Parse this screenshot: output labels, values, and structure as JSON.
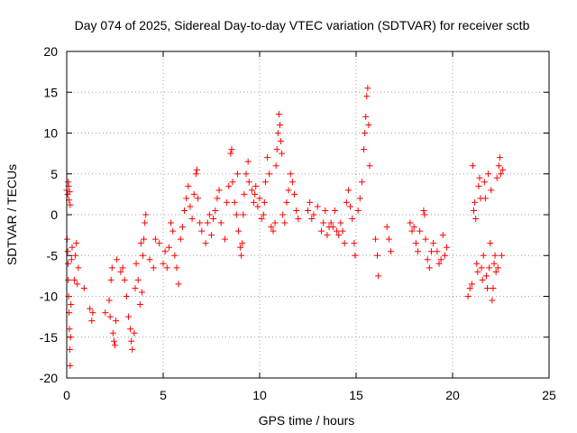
{
  "chart_data": {
    "type": "scatter",
    "title": "Day 074 of 2025, Sidereal Day-to-day VTEC variation (SDTVAR) for receiver sctb",
    "xlabel": "GPS time / hours",
    "ylabel": "SDTVAR / TECUs",
    "xlim": [
      0,
      25
    ],
    "ylim": [
      -20,
      20
    ],
    "xticks": [
      "0",
      "5",
      "10",
      "15",
      "20",
      "25"
    ],
    "yticks": [
      "20",
      "15",
      "10",
      "5",
      "0",
      "-5",
      "-10",
      "-15",
      "-20"
    ],
    "grid": true,
    "marker": "plus",
    "color": "#ff0000",
    "series": [
      {
        "name": "SDTVAR",
        "points": [
          [
            0.0,
            3.0
          ],
          [
            0.05,
            2.5
          ],
          [
            0.08,
            4.0
          ],
          [
            0.1,
            3.5
          ],
          [
            0.12,
            1.8
          ],
          [
            0.15,
            2.8
          ],
          [
            0.18,
            1.2
          ],
          [
            0.02,
            -3.0
          ],
          [
            0.05,
            -4.5
          ],
          [
            0.07,
            -6.0
          ],
          [
            0.08,
            -8.0
          ],
          [
            0.1,
            -10.0
          ],
          [
            0.12,
            -12.0
          ],
          [
            0.14,
            -14.0
          ],
          [
            0.16,
            -16.5
          ],
          [
            0.18,
            -18.5
          ],
          [
            0.2,
            -15.0
          ],
          [
            0.22,
            -11.0
          ],
          [
            0.25,
            -5.5
          ],
          [
            0.28,
            -4.0
          ],
          [
            0.4,
            -8.0
          ],
          [
            0.45,
            -5.0
          ],
          [
            0.5,
            -3.5
          ],
          [
            0.55,
            -8.5
          ],
          [
            0.6,
            -6.5
          ],
          [
            0.9,
            -9.0
          ],
          [
            1.2,
            -11.5
          ],
          [
            1.3,
            -13.0
          ],
          [
            1.35,
            -12.0
          ],
          [
            2.0,
            -12.0
          ],
          [
            2.2,
            -10.5
          ],
          [
            2.3,
            -8.0
          ],
          [
            2.35,
            -6.5
          ],
          [
            2.4,
            -14.5
          ],
          [
            2.45,
            -15.5
          ],
          [
            2.5,
            -16.0
          ],
          [
            2.55,
            -13.0
          ],
          [
            2.6,
            -5.5
          ],
          [
            2.25,
            -12.5
          ],
          [
            2.8,
            -7.0
          ],
          [
            2.9,
            -6.5
          ],
          [
            3.0,
            -8.0
          ],
          [
            3.1,
            -10.0
          ],
          [
            3.2,
            -12.5
          ],
          [
            3.3,
            -14.0
          ],
          [
            3.35,
            -15.5
          ],
          [
            3.4,
            -16.5
          ],
          [
            3.5,
            -14.5
          ],
          [
            3.55,
            -9.0
          ],
          [
            3.6,
            -6.0
          ],
          [
            3.7,
            -8.0
          ],
          [
            3.8,
            -11.0
          ],
          [
            3.9,
            -9.5
          ],
          [
            3.95,
            -5.0
          ],
          [
            4.0,
            -3.0
          ],
          [
            4.05,
            -1.0
          ],
          [
            4.1,
            0.0
          ],
          [
            3.85,
            -3.5
          ],
          [
            4.3,
            -5.5
          ],
          [
            4.5,
            -6.5
          ],
          [
            4.6,
            -3.0
          ],
          [
            4.8,
            -3.5
          ],
          [
            5.0,
            -6.0
          ],
          [
            5.1,
            -4.5
          ],
          [
            5.2,
            -6.5
          ],
          [
            5.3,
            -4.0
          ],
          [
            5.4,
            -1.0
          ],
          [
            5.5,
            -2.0
          ],
          [
            5.6,
            -5.0
          ],
          [
            5.7,
            -6.5
          ],
          [
            5.8,
            -8.5
          ],
          [
            5.9,
            -3.0
          ],
          [
            6.0,
            -1.5
          ],
          [
            6.1,
            0.5
          ],
          [
            6.2,
            2.0
          ],
          [
            6.3,
            3.5
          ],
          [
            6.4,
            1.0
          ],
          [
            6.5,
            -0.5
          ],
          [
            6.6,
            2.5
          ],
          [
            6.7,
            5.0
          ],
          [
            6.75,
            5.5
          ],
          [
            6.8,
            2.0
          ],
          [
            6.9,
            -1.0
          ],
          [
            7.0,
            -2.0
          ],
          [
            7.2,
            -3.5
          ],
          [
            7.3,
            -1.0
          ],
          [
            7.4,
            0.0
          ],
          [
            7.5,
            -2.5
          ],
          [
            7.6,
            -0.5
          ],
          [
            7.7,
            0.5
          ],
          [
            7.8,
            2.0
          ],
          [
            7.9,
            3.0
          ],
          [
            8.0,
            -1.0
          ],
          [
            8.2,
            -3.0
          ],
          [
            8.3,
            1.5
          ],
          [
            8.4,
            3.5
          ],
          [
            8.5,
            7.5
          ],
          [
            8.55,
            8.0
          ],
          [
            8.6,
            4.0
          ],
          [
            8.7,
            1.5
          ],
          [
            8.8,
            0.0
          ],
          [
            8.85,
            5.0
          ],
          [
            8.9,
            -2.0
          ],
          [
            9.0,
            -4.0
          ],
          [
            9.05,
            -5.0
          ],
          [
            9.1,
            -3.5
          ],
          [
            9.15,
            0.0
          ],
          [
            9.2,
            2.5
          ],
          [
            9.3,
            5.0
          ],
          [
            9.4,
            6.5
          ],
          [
            9.45,
            4.0
          ],
          [
            9.6,
            3.0
          ],
          [
            9.7,
            1.5
          ],
          [
            9.75,
            2.5
          ],
          [
            9.8,
            3.5
          ],
          [
            9.9,
            1.0
          ],
          [
            10.0,
            2.0
          ],
          [
            10.1,
            -0.5
          ],
          [
            10.2,
            0.0
          ],
          [
            10.25,
            1.5
          ],
          [
            10.3,
            4.0
          ],
          [
            10.4,
            7.0
          ],
          [
            10.5,
            5.0
          ],
          [
            10.6,
            -1.5
          ],
          [
            10.7,
            -2.0
          ],
          [
            10.8,
            -1.0
          ],
          [
            10.85,
            6.0
          ],
          [
            10.9,
            8.0
          ],
          [
            10.95,
            10.0
          ],
          [
            11.0,
            12.3
          ],
          [
            11.05,
            11.0
          ],
          [
            11.1,
            9.0
          ],
          [
            11.15,
            7.5
          ],
          [
            11.2,
            0.0
          ],
          [
            11.3,
            -1.0
          ],
          [
            11.4,
            1.5
          ],
          [
            11.5,
            3.0
          ],
          [
            11.6,
            5.0
          ],
          [
            11.7,
            4.0
          ],
          [
            11.8,
            2.5
          ],
          [
            11.9,
            0.5
          ],
          [
            12.0,
            -0.5
          ],
          [
            12.5,
            0.5
          ],
          [
            12.6,
            1.5
          ],
          [
            12.7,
            -0.5
          ],
          [
            12.8,
            0.0
          ],
          [
            13.0,
            1.0
          ],
          [
            13.2,
            -2.0
          ],
          [
            13.3,
            -1.0
          ],
          [
            13.4,
            0.5
          ],
          [
            13.5,
            -2.5
          ],
          [
            13.6,
            -1.5
          ],
          [
            13.7,
            -1.0
          ],
          [
            13.8,
            -1.5
          ],
          [
            13.9,
            0.5
          ],
          [
            14.0,
            -2.0
          ],
          [
            14.1,
            -2.5
          ],
          [
            14.2,
            -1.0
          ],
          [
            14.3,
            -2.0
          ],
          [
            14.4,
            -3.5
          ],
          [
            14.5,
            1.5
          ],
          [
            14.6,
            3.0
          ],
          [
            14.7,
            1.0
          ],
          [
            14.8,
            -0.5
          ],
          [
            14.9,
            -3.5
          ],
          [
            14.95,
            -5.0
          ],
          [
            15.1,
            0.5
          ],
          [
            15.2,
            2.0
          ],
          [
            15.3,
            4.0
          ],
          [
            15.4,
            8.0
          ],
          [
            15.45,
            10.0
          ],
          [
            15.5,
            12.0
          ],
          [
            15.55,
            14.5
          ],
          [
            15.6,
            15.5
          ],
          [
            15.65,
            11.0
          ],
          [
            15.7,
            6.0
          ],
          [
            16.0,
            -3.0
          ],
          [
            16.1,
            -5.0
          ],
          [
            16.15,
            -7.5
          ],
          [
            16.6,
            -1.5
          ],
          [
            16.7,
            -3.0
          ],
          [
            16.8,
            -4.5
          ],
          [
            17.8,
            -1.0
          ],
          [
            17.9,
            -2.0
          ],
          [
            18.0,
            -1.5
          ],
          [
            18.1,
            -3.5
          ],
          [
            18.2,
            -4.5
          ],
          [
            18.3,
            -2.0
          ],
          [
            18.5,
            0.5
          ],
          [
            18.55,
            0.0
          ],
          [
            18.6,
            -3.0
          ],
          [
            18.7,
            -5.5
          ],
          [
            18.8,
            -6.5
          ],
          [
            18.9,
            -4.5
          ],
          [
            19.0,
            -3.5
          ],
          [
            19.2,
            -4.5
          ],
          [
            19.3,
            -6.0
          ],
          [
            19.4,
            -5.5
          ],
          [
            19.5,
            -2.5
          ],
          [
            19.6,
            -5.0
          ],
          [
            19.7,
            -4.0
          ],
          [
            20.8,
            -10.0
          ],
          [
            20.9,
            -9.0
          ],
          [
            21.0,
            -8.5
          ],
          [
            21.05,
            6.0
          ],
          [
            21.1,
            0.5
          ],
          [
            21.15,
            1.5
          ],
          [
            21.2,
            -0.5
          ],
          [
            21.25,
            -6.0
          ],
          [
            21.3,
            -7.0
          ],
          [
            21.35,
            3.5
          ],
          [
            21.4,
            4.5
          ],
          [
            21.45,
            2.0
          ],
          [
            21.5,
            -6.5
          ],
          [
            21.55,
            -8.0
          ],
          [
            21.6,
            -5.0
          ],
          [
            21.65,
            4.0
          ],
          [
            21.7,
            2.0
          ],
          [
            21.75,
            -7.5
          ],
          [
            21.8,
            -9.0
          ],
          [
            21.85,
            5.0
          ],
          [
            21.9,
            -6.5
          ],
          [
            21.95,
            -3.5
          ],
          [
            22.0,
            3.0
          ],
          [
            22.05,
            -10.5
          ],
          [
            22.1,
            -9.0
          ],
          [
            22.15,
            -6.0
          ],
          [
            22.2,
            -5.0
          ],
          [
            22.25,
            -7.0
          ],
          [
            22.3,
            4.5
          ],
          [
            22.35,
            -6.5
          ],
          [
            22.4,
            6.0
          ],
          [
            22.45,
            7.0
          ],
          [
            22.5,
            5.0
          ],
          [
            22.55,
            -5.0
          ],
          [
            22.6,
            5.5
          ]
        ]
      }
    ]
  }
}
